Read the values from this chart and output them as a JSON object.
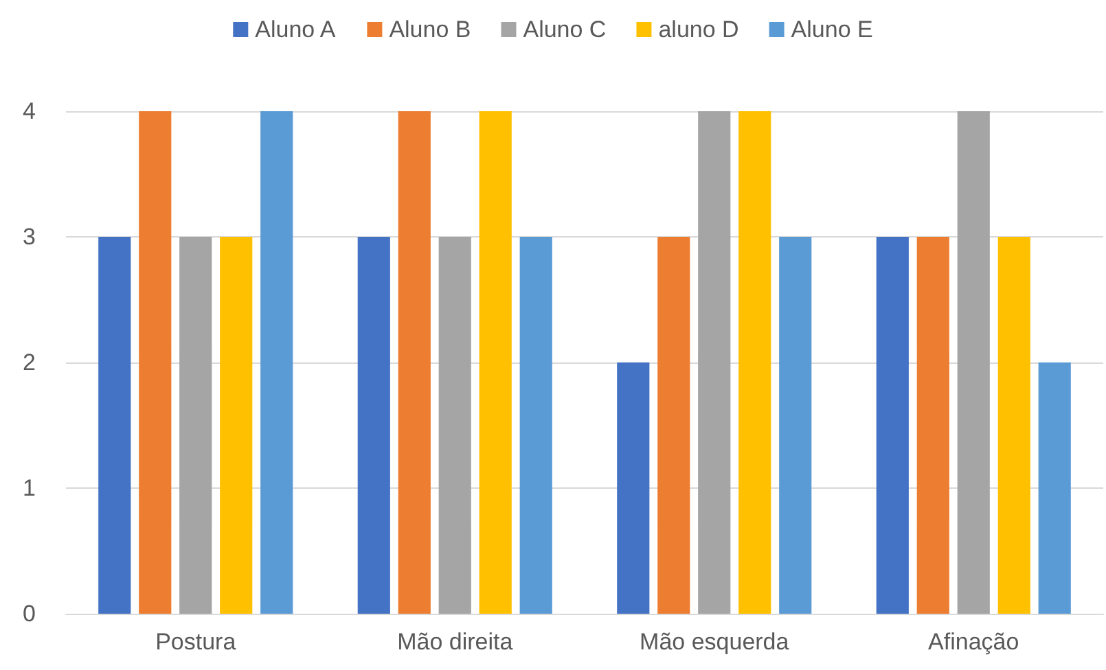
{
  "chart_data": {
    "type": "bar",
    "categories": [
      "Postura",
      "Mão direita",
      "Mão esquerda",
      "Afinação"
    ],
    "series": [
      {
        "name": "Aluno A",
        "color": "#4472c4",
        "values": [
          3,
          3,
          2,
          3
        ]
      },
      {
        "name": "Aluno B",
        "color": "#ed7d31",
        "values": [
          4,
          4,
          3,
          3
        ]
      },
      {
        "name": "Aluno C",
        "color": "#a5a5a5",
        "values": [
          3,
          3,
          4,
          4
        ]
      },
      {
        "name": "aluno D",
        "color": "#ffc000",
        "values": [
          3,
          4,
          4,
          3
        ]
      },
      {
        "name": "Aluno E",
        "color": "#5b9bd5",
        "values": [
          4,
          3,
          3,
          2
        ]
      }
    ],
    "ylim": [
      0,
      4
    ],
    "yticks": [
      0,
      1,
      2,
      3,
      4
    ],
    "grid": "y",
    "legend": "top"
  }
}
